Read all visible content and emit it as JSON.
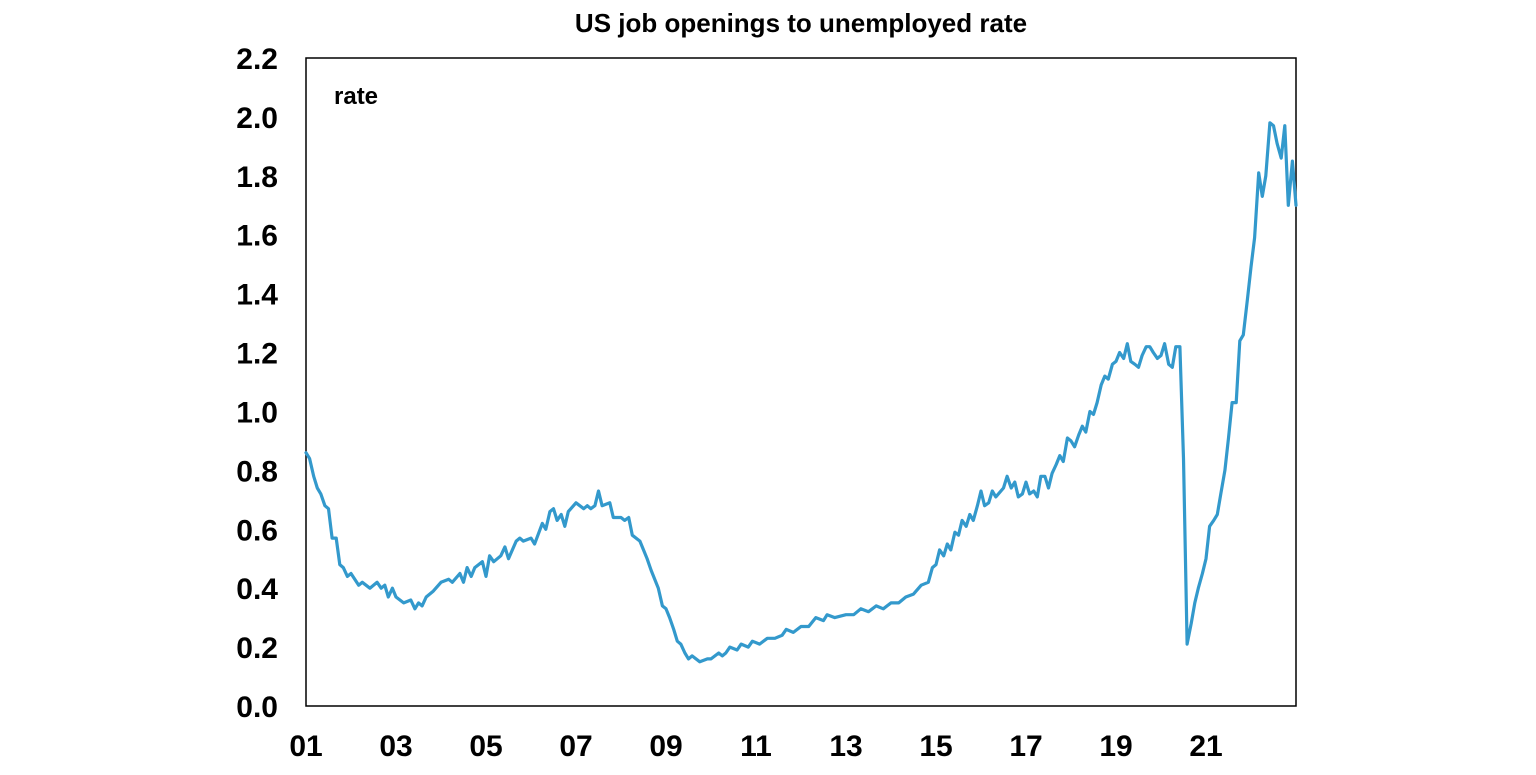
{
  "chart_data": {
    "type": "line",
    "title": "US job openings to unemployed rate",
    "annotation": "rate",
    "xlabel": "",
    "ylabel": "",
    "ylim": [
      0,
      2.2
    ],
    "yticks": [
      "0.0",
      "0.2",
      "0.4",
      "0.6",
      "0.8",
      "1.0",
      "1.2",
      "1.4",
      "1.6",
      "1.8",
      "2.0",
      "2.2"
    ],
    "xlim": [
      2001.0,
      2023.0
    ],
    "xticks": [
      {
        "label": "01",
        "x": 2001
      },
      {
        "label": "03",
        "x": 2003
      },
      {
        "label": "05",
        "x": 2005
      },
      {
        "label": "07",
        "x": 2007
      },
      {
        "label": "09",
        "x": 2009
      },
      {
        "label": "11",
        "x": 2011
      },
      {
        "label": "13",
        "x": 2013
      },
      {
        "label": "15",
        "x": 2015
      },
      {
        "label": "17",
        "x": 2017
      },
      {
        "label": "19",
        "x": 2019
      },
      {
        "label": "21",
        "x": 2021
      }
    ],
    "grid": false,
    "line_color": "#3399cc",
    "series": [
      {
        "points": [
          [
            2001.0,
            0.86
          ],
          [
            2001.08,
            0.84
          ],
          [
            2001.17,
            0.78
          ],
          [
            2001.25,
            0.74
          ],
          [
            2001.33,
            0.72
          ],
          [
            2001.42,
            0.68
          ],
          [
            2001.5,
            0.67
          ],
          [
            2001.58,
            0.57
          ],
          [
            2001.67,
            0.57
          ],
          [
            2001.75,
            0.48
          ],
          [
            2001.83,
            0.47
          ],
          [
            2001.92,
            0.44
          ],
          [
            2002.0,
            0.45
          ],
          [
            2002.17,
            0.41
          ],
          [
            2002.25,
            0.42
          ],
          [
            2002.42,
            0.4
          ],
          [
            2002.58,
            0.42
          ],
          [
            2002.67,
            0.4
          ],
          [
            2002.75,
            0.41
          ],
          [
            2002.83,
            0.37
          ],
          [
            2002.92,
            0.4
          ],
          [
            2003.0,
            0.37
          ],
          [
            2003.17,
            0.35
          ],
          [
            2003.33,
            0.36
          ],
          [
            2003.42,
            0.33
          ],
          [
            2003.5,
            0.35
          ],
          [
            2003.58,
            0.34
          ],
          [
            2003.67,
            0.37
          ],
          [
            2003.83,
            0.39
          ],
          [
            2004.0,
            0.42
          ],
          [
            2004.17,
            0.43
          ],
          [
            2004.25,
            0.42
          ],
          [
            2004.42,
            0.45
          ],
          [
            2004.5,
            0.42
          ],
          [
            2004.58,
            0.47
          ],
          [
            2004.67,
            0.44
          ],
          [
            2004.75,
            0.47
          ],
          [
            2004.92,
            0.49
          ],
          [
            2005.0,
            0.44
          ],
          [
            2005.08,
            0.51
          ],
          [
            2005.17,
            0.49
          ],
          [
            2005.33,
            0.51
          ],
          [
            2005.42,
            0.54
          ],
          [
            2005.5,
            0.5
          ],
          [
            2005.67,
            0.56
          ],
          [
            2005.75,
            0.57
          ],
          [
            2005.83,
            0.56
          ],
          [
            2006.0,
            0.57
          ],
          [
            2006.08,
            0.55
          ],
          [
            2006.25,
            0.62
          ],
          [
            2006.33,
            0.6
          ],
          [
            2006.42,
            0.66
          ],
          [
            2006.5,
            0.67
          ],
          [
            2006.58,
            0.63
          ],
          [
            2006.67,
            0.65
          ],
          [
            2006.75,
            0.61
          ],
          [
            2006.83,
            0.66
          ],
          [
            2007.0,
            0.69
          ],
          [
            2007.17,
            0.67
          ],
          [
            2007.25,
            0.68
          ],
          [
            2007.33,
            0.67
          ],
          [
            2007.42,
            0.68
          ],
          [
            2007.5,
            0.73
          ],
          [
            2007.58,
            0.68
          ],
          [
            2007.75,
            0.69
          ],
          [
            2007.83,
            0.64
          ],
          [
            2008.0,
            0.64
          ],
          [
            2008.08,
            0.63
          ],
          [
            2008.17,
            0.64
          ],
          [
            2008.25,
            0.58
          ],
          [
            2008.42,
            0.56
          ],
          [
            2008.5,
            0.53
          ],
          [
            2008.58,
            0.5
          ],
          [
            2008.67,
            0.46
          ],
          [
            2008.83,
            0.4
          ],
          [
            2008.92,
            0.34
          ],
          [
            2009.0,
            0.33
          ],
          [
            2009.08,
            0.3
          ],
          [
            2009.17,
            0.26
          ],
          [
            2009.25,
            0.22
          ],
          [
            2009.33,
            0.21
          ],
          [
            2009.42,
            0.18
          ],
          [
            2009.5,
            0.16
          ],
          [
            2009.58,
            0.17
          ],
          [
            2009.75,
            0.15
          ],
          [
            2009.92,
            0.16
          ],
          [
            2010.0,
            0.16
          ],
          [
            2010.17,
            0.18
          ],
          [
            2010.25,
            0.17
          ],
          [
            2010.33,
            0.18
          ],
          [
            2010.42,
            0.2
          ],
          [
            2010.58,
            0.19
          ],
          [
            2010.67,
            0.21
          ],
          [
            2010.83,
            0.2
          ],
          [
            2010.92,
            0.22
          ],
          [
            2011.08,
            0.21
          ],
          [
            2011.25,
            0.23
          ],
          [
            2011.42,
            0.23
          ],
          [
            2011.58,
            0.24
          ],
          [
            2011.67,
            0.26
          ],
          [
            2011.83,
            0.25
          ],
          [
            2012.0,
            0.27
          ],
          [
            2012.17,
            0.27
          ],
          [
            2012.33,
            0.3
          ],
          [
            2012.5,
            0.29
          ],
          [
            2012.58,
            0.31
          ],
          [
            2012.75,
            0.3
          ],
          [
            2013.0,
            0.31
          ],
          [
            2013.17,
            0.31
          ],
          [
            2013.33,
            0.33
          ],
          [
            2013.5,
            0.32
          ],
          [
            2013.67,
            0.34
          ],
          [
            2013.83,
            0.33
          ],
          [
            2014.0,
            0.35
          ],
          [
            2014.17,
            0.35
          ],
          [
            2014.33,
            0.37
          ],
          [
            2014.5,
            0.38
          ],
          [
            2014.67,
            0.41
          ],
          [
            2014.83,
            0.42
          ],
          [
            2014.92,
            0.47
          ],
          [
            2015.0,
            0.48
          ],
          [
            2015.08,
            0.53
          ],
          [
            2015.17,
            0.51
          ],
          [
            2015.25,
            0.55
          ],
          [
            2015.33,
            0.53
          ],
          [
            2015.42,
            0.59
          ],
          [
            2015.5,
            0.58
          ],
          [
            2015.58,
            0.63
          ],
          [
            2015.67,
            0.61
          ],
          [
            2015.75,
            0.65
          ],
          [
            2015.83,
            0.63
          ],
          [
            2015.92,
            0.68
          ],
          [
            2016.0,
            0.73
          ],
          [
            2016.08,
            0.68
          ],
          [
            2016.17,
            0.69
          ],
          [
            2016.25,
            0.73
          ],
          [
            2016.33,
            0.71
          ],
          [
            2016.5,
            0.74
          ],
          [
            2016.58,
            0.78
          ],
          [
            2016.67,
            0.74
          ],
          [
            2016.75,
            0.76
          ],
          [
            2016.83,
            0.71
          ],
          [
            2016.92,
            0.72
          ],
          [
            2017.0,
            0.76
          ],
          [
            2017.08,
            0.72
          ],
          [
            2017.17,
            0.73
          ],
          [
            2017.25,
            0.71
          ],
          [
            2017.33,
            0.78
          ],
          [
            2017.42,
            0.78
          ],
          [
            2017.5,
            0.74
          ],
          [
            2017.58,
            0.79
          ],
          [
            2017.67,
            0.82
          ],
          [
            2017.75,
            0.85
          ],
          [
            2017.83,
            0.83
          ],
          [
            2017.92,
            0.91
          ],
          [
            2018.0,
            0.9
          ],
          [
            2018.08,
            0.88
          ],
          [
            2018.17,
            0.92
          ],
          [
            2018.25,
            0.95
          ],
          [
            2018.33,
            0.93
          ],
          [
            2018.42,
            1.0
          ],
          [
            2018.5,
            0.99
          ],
          [
            2018.58,
            1.03
          ],
          [
            2018.67,
            1.09
          ],
          [
            2018.75,
            1.12
          ],
          [
            2018.83,
            1.11
          ],
          [
            2018.92,
            1.16
          ],
          [
            2019.0,
            1.17
          ],
          [
            2019.08,
            1.2
          ],
          [
            2019.17,
            1.18
          ],
          [
            2019.25,
            1.23
          ],
          [
            2019.33,
            1.17
          ],
          [
            2019.42,
            1.16
          ],
          [
            2019.5,
            1.15
          ],
          [
            2019.58,
            1.19
          ],
          [
            2019.67,
            1.22
          ],
          [
            2019.75,
            1.22
          ],
          [
            2019.83,
            1.2
          ],
          [
            2019.92,
            1.18
          ],
          [
            2020.0,
            1.19
          ],
          [
            2020.08,
            1.23
          ],
          [
            2020.17,
            1.16
          ],
          [
            2020.25,
            1.15
          ],
          [
            2020.33,
            1.22
          ],
          [
            2020.42,
            1.22
          ],
          [
            2020.5,
            0.84
          ],
          [
            2020.58,
            0.21
          ],
          [
            2020.67,
            0.28
          ],
          [
            2020.75,
            0.35
          ],
          [
            2020.83,
            0.4
          ],
          [
            2020.92,
            0.45
          ],
          [
            2021.0,
            0.5
          ],
          [
            2021.08,
            0.61
          ],
          [
            2021.17,
            0.63
          ],
          [
            2021.25,
            0.65
          ],
          [
            2021.33,
            0.72
          ],
          [
            2021.42,
            0.8
          ],
          [
            2021.5,
            0.91
          ],
          [
            2021.58,
            1.03
          ],
          [
            2021.67,
            1.03
          ],
          [
            2021.75,
            1.24
          ],
          [
            2021.83,
            1.26
          ],
          [
            2021.92,
            1.38
          ],
          [
            2022.0,
            1.49
          ],
          [
            2022.08,
            1.59
          ],
          [
            2022.17,
            1.81
          ],
          [
            2022.25,
            1.73
          ],
          [
            2022.33,
            1.8
          ],
          [
            2022.42,
            1.98
          ],
          [
            2022.5,
            1.97
          ],
          [
            2022.58,
            1.91
          ],
          [
            2022.67,
            1.86
          ],
          [
            2022.75,
            1.97
          ],
          [
            2022.83,
            1.7
          ],
          [
            2022.92,
            1.85
          ],
          [
            2023.0,
            1.7
          ]
        ]
      }
    ]
  }
}
